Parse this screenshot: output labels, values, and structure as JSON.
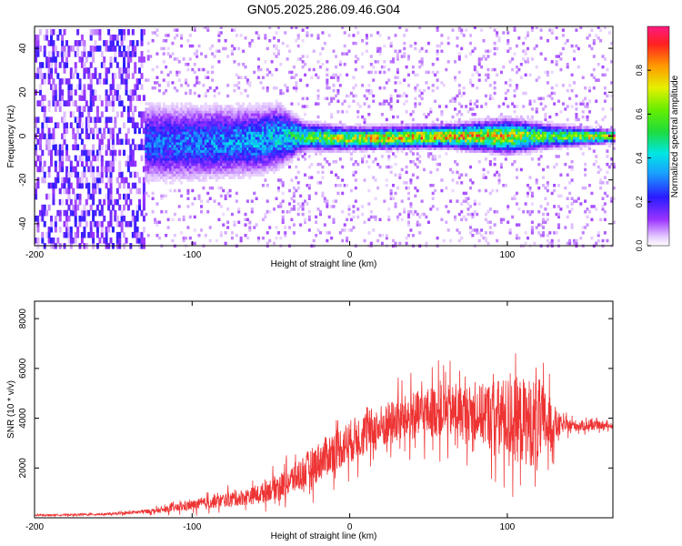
{
  "page": {
    "title": "GN05.2025.286.09.46.G04"
  },
  "chart_data": [
    {
      "type": "heatmap",
      "title": "GN05.2025.286.09.46.G04",
      "xlabel": "Height of straight line (km)",
      "ylabel": "Frequency (Hz)",
      "xlim": [
        -200,
        167
      ],
      "ylim": [
        -50,
        50
      ],
      "xticks": [
        -200,
        -100,
        0,
        100
      ],
      "yticks": [
        -40,
        -20,
        0,
        20,
        40
      ],
      "colorbar": {
        "label": "Normalized spectral amplitude",
        "range": [
          0,
          1
        ],
        "ticks": [
          "0.0",
          "0.2",
          "0.4",
          "0.6",
          "0.8"
        ]
      },
      "band_profile": [
        {
          "x": -200,
          "center": 0,
          "halfwidth": 50,
          "peak": 0.2
        },
        {
          "x": -135,
          "center": 0,
          "halfwidth": 50,
          "peak": 0.2
        },
        {
          "x": -130,
          "center": -3,
          "halfwidth": 14,
          "peak": 0.3
        },
        {
          "x": -100,
          "center": -3,
          "halfwidth": 13,
          "peak": 0.35
        },
        {
          "x": -60,
          "center": -2,
          "halfwidth": 12,
          "peak": 0.4
        },
        {
          "x": -45,
          "center": 0,
          "halfwidth": 11,
          "peak": 0.45
        },
        {
          "x": -30,
          "center": 0,
          "halfwidth": 5,
          "peak": 0.6
        },
        {
          "x": 0,
          "center": -1,
          "halfwidth": 4,
          "peak": 0.8
        },
        {
          "x": 60,
          "center": 0,
          "halfwidth": 4,
          "peak": 0.9
        },
        {
          "x": 100,
          "center": 0,
          "halfwidth": 6,
          "peak": 0.8
        },
        {
          "x": 130,
          "center": 0,
          "halfwidth": 4,
          "peak": 0.6
        },
        {
          "x": 167,
          "center": 0,
          "halfwidth": 2,
          "peak": 1.0
        }
      ]
    },
    {
      "type": "line",
      "xlabel": "Height of straight line (km)",
      "ylabel": "SNR (10 * v/v)",
      "xlim": [
        -200,
        167
      ],
      "ylim": [
        0,
        8700
      ],
      "xticks": [
        -200,
        -100,
        0,
        100
      ],
      "yticks": [
        2000,
        4000,
        6000,
        8000
      ],
      "series": [
        {
          "name": "SNR",
          "color": "#ee3333",
          "envelope": [
            {
              "x": -200,
              "mean": 100,
              "spread": 40
            },
            {
              "x": -150,
              "mean": 150,
              "spread": 60
            },
            {
              "x": -120,
              "mean": 300,
              "spread": 150
            },
            {
              "x": -100,
              "mean": 500,
              "spread": 300
            },
            {
              "x": -80,
              "mean": 700,
              "spread": 400
            },
            {
              "x": -60,
              "mean": 900,
              "spread": 500
            },
            {
              "x": -40,
              "mean": 1400,
              "spread": 800
            },
            {
              "x": -25,
              "mean": 2000,
              "spread": 1100
            },
            {
              "x": -10,
              "mean": 2700,
              "spread": 1200
            },
            {
              "x": 10,
              "mean": 3400,
              "spread": 1300
            },
            {
              "x": 30,
              "mean": 3900,
              "spread": 1300
            },
            {
              "x": 55,
              "mean": 4300,
              "spread": 1500
            },
            {
              "x": 80,
              "mean": 4200,
              "spread": 1600
            },
            {
              "x": 100,
              "mean": 4000,
              "spread": 2400
            },
            {
              "x": 120,
              "mean": 3800,
              "spread": 2600
            },
            {
              "x": 135,
              "mean": 3700,
              "spread": 400
            },
            {
              "x": 167,
              "mean": 3700,
              "spread": 150
            }
          ]
        }
      ]
    }
  ]
}
